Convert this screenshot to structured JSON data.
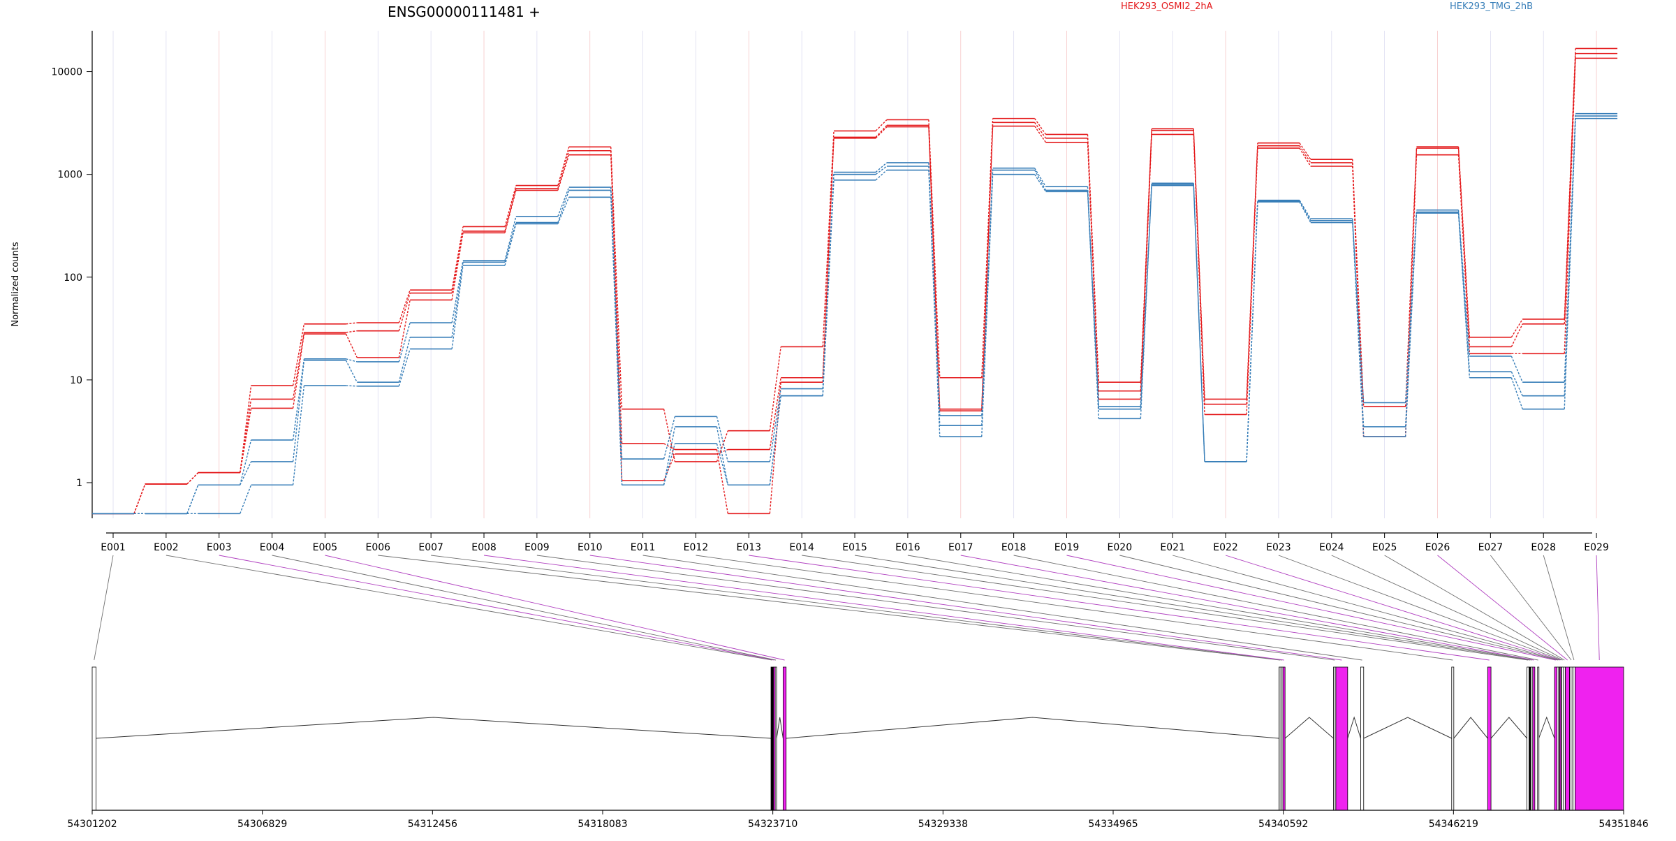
{
  "chart_data": {
    "type": "line",
    "title": "ENSG00000111481 +",
    "ylabel": "Normalized counts",
    "yscale": "log",
    "ylim": [
      0.45,
      25000
    ],
    "yticks": [
      1,
      10,
      100,
      1000,
      10000
    ],
    "ytick_labels": [
      "1",
      "10",
      "100",
      "1000",
      "10000"
    ],
    "categories": [
      "E001",
      "E002",
      "E003",
      "E004",
      "E005",
      "E006",
      "E007",
      "E008",
      "E009",
      "E010",
      "E011",
      "E012",
      "E013",
      "E014",
      "E015",
      "E016",
      "E017",
      "E018",
      "E019",
      "E020",
      "E021",
      "E022",
      "E023",
      "E024",
      "E025",
      "E026",
      "E027",
      "E028",
      "E029"
    ],
    "legend": [
      {
        "name": "HEK293_OSMI2_2hA",
        "color": "#e41a1c"
      },
      {
        "name": "HEK293_TMG_2hB",
        "color": "#377eb8"
      }
    ],
    "series": [
      {
        "group": "HEK293_OSMI2_2hA",
        "color": "#e41a1c",
        "values": [
          0.5,
          0.97,
          1.25,
          8.8,
          35,
          36,
          75,
          310,
          780,
          1850,
          5.2,
          1.6,
          3.2,
          21,
          2650,
          3400,
          10.5,
          3500,
          2450,
          9.5,
          2780,
          6.5,
          2020,
          1400,
          2.8,
          1860,
          26,
          39,
          16800
        ]
      },
      {
        "group": "HEK293_OSMI2_2hA",
        "color": "#e41a1c",
        "values": [
          0.5,
          0.97,
          1.25,
          6.5,
          29,
          30,
          70,
          280,
          730,
          1700,
          1.05,
          1.9,
          2.1,
          10.5,
          2300,
          3000,
          5.2,
          3200,
          2250,
          7.8,
          2680,
          5.8,
          1900,
          1300,
          5.5,
          1800,
          21,
          35,
          15000
        ]
      },
      {
        "group": "HEK293_OSMI2_2hA",
        "color": "#e41a1c",
        "values": [
          0.5,
          0.97,
          1.25,
          5.3,
          28,
          16.5,
          60,
          270,
          700,
          1550,
          2.4,
          2.1,
          0.5,
          9.5,
          2250,
          2900,
          5.0,
          2950,
          2050,
          6.5,
          2450,
          4.6,
          1800,
          1200,
          2.8,
          1550,
          18,
          18,
          13500
        ]
      },
      {
        "group": "HEK293_TMG_2hB",
        "color": "#377eb8",
        "values": [
          0.5,
          0.5,
          0.95,
          2.6,
          16,
          15,
          36,
          145,
          390,
          750,
          1.7,
          4.4,
          1.6,
          8.2,
          1050,
          1300,
          4.5,
          1150,
          760,
          5.2,
          820,
          1.6,
          560,
          370,
          3.5,
          450,
          17,
          9.5,
          3900
        ]
      },
      {
        "group": "HEK293_TMG_2hB",
        "color": "#377eb8",
        "values": [
          0.5,
          0.5,
          0.95,
          1.6,
          15.5,
          9.5,
          26,
          140,
          340,
          700,
          0.95,
          3.5,
          0.95,
          7.0,
          1000,
          1200,
          3.6,
          1100,
          700,
          4.2,
          800,
          1.6,
          550,
          355,
          6.0,
          430,
          12,
          7.0,
          3700
        ]
      },
      {
        "group": "HEK293_TMG_2hB",
        "color": "#377eb8",
        "values": [
          0.5,
          0.5,
          0.5,
          0.95,
          8.8,
          8.7,
          20,
          130,
          330,
          600,
          0.95,
          2.4,
          0.95,
          7.0,
          880,
          1100,
          2.8,
          1000,
          680,
          5.5,
          780,
          1.6,
          540,
          340,
          2.8,
          420,
          10.5,
          5.2,
          3500
        ]
      }
    ],
    "exon_feature_colors": [
      "#ffffff",
      "#000000",
      "#ef22ef",
      "#ffffff",
      "#ef22ef",
      "#c8c8c8",
      "#ffffff",
      "#ef22ef",
      "#c8c8c8",
      "#ef22ef",
      "#ffffff",
      "#ffffff",
      "#ef22ef",
      "#ffffff",
      "#000000",
      "#ffffff",
      "#ef22ef",
      "#ffffff",
      "#ef22ef",
      "#ffffff",
      "#c8c8c8",
      "#ef22ef",
      "#c8c8c8",
      "#ffffff",
      "#ffffff",
      "#ef22ef",
      "#c8c8c8",
      "#ffffff",
      "#ef22ef"
    ],
    "genomic_axis": {
      "range": [
        54301202,
        54351846
      ],
      "tick_labels": [
        "54301202",
        "54306829",
        "54312456",
        "54318083",
        "54323710",
        "54329338",
        "54334965",
        "54340592",
        "54346219",
        "54351846"
      ]
    },
    "colors": {
      "osmi": "#e41a1c",
      "tmg": "#377eb8",
      "highlight": "#ef22ef",
      "background": "#ffffff"
    }
  }
}
